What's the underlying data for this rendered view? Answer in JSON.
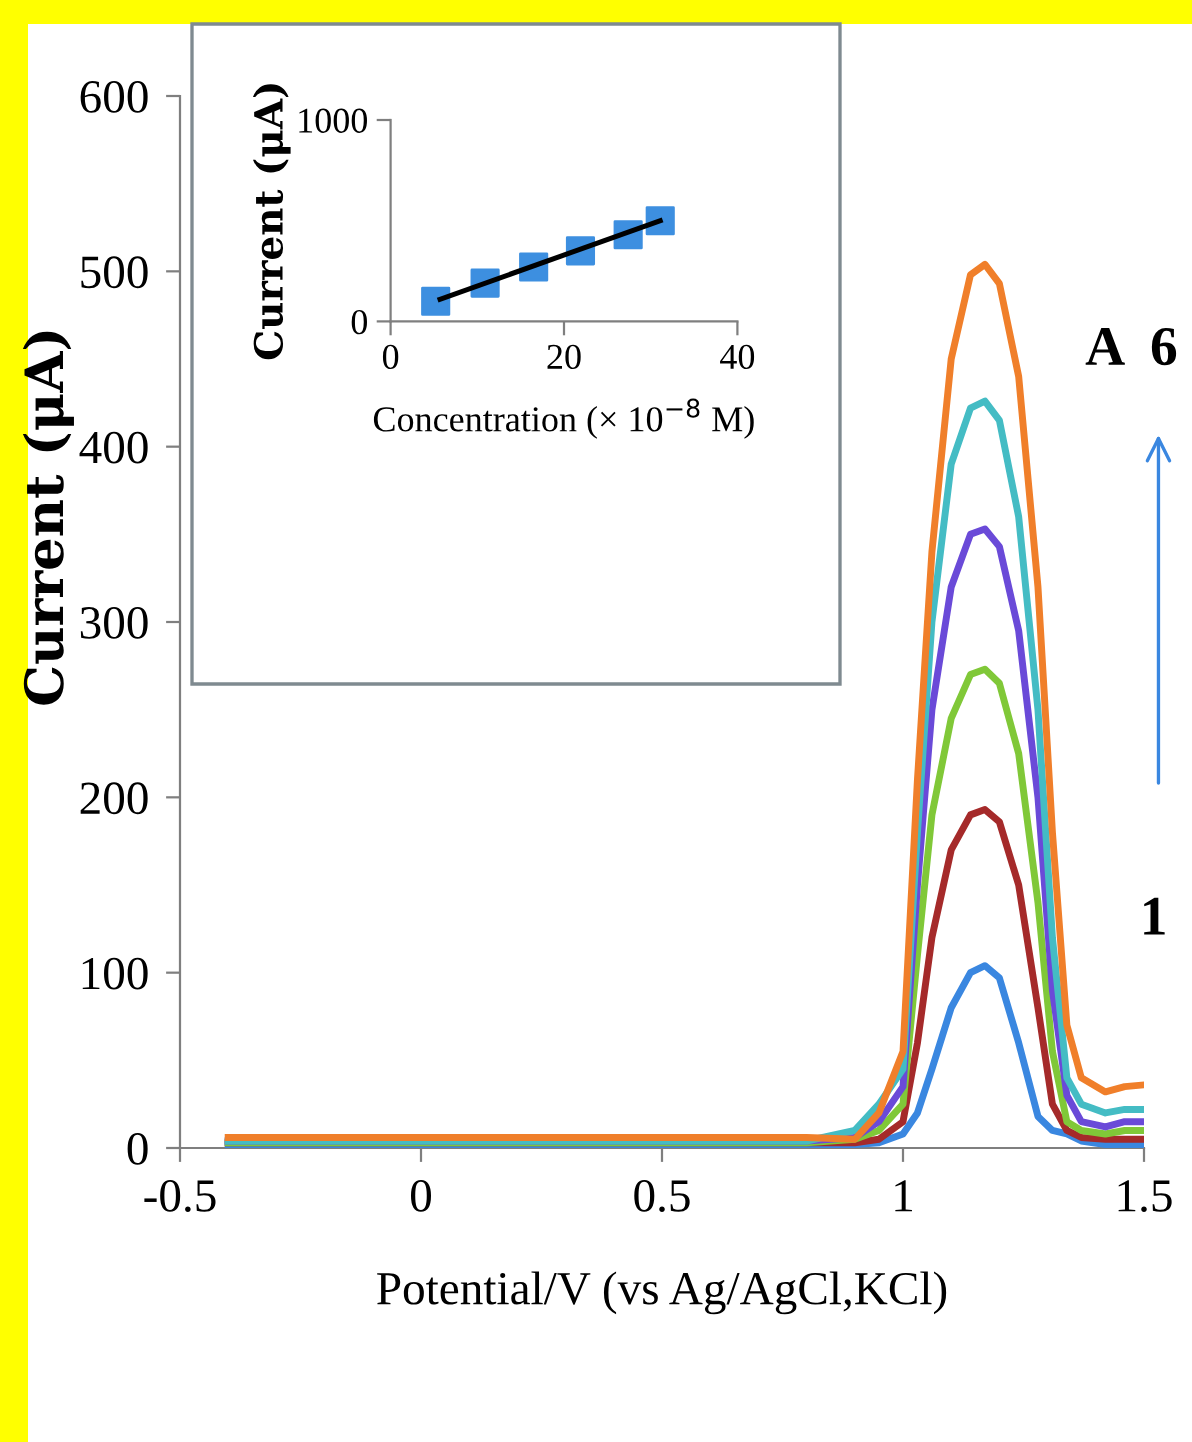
{
  "chart_data": [
    {
      "type": "line",
      "xlabel": "Potential/V (vs Ag/AgCl,KCl)",
      "ylabel": "Current (μA)",
      "xlim": [
        -0.5,
        1.5
      ],
      "ylim": [
        0,
        600
      ],
      "xticks": [
        -0.5,
        0,
        0.5,
        1,
        1.5
      ],
      "yticks": [
        0,
        100,
        200,
        300,
        400,
        500,
        600
      ],
      "annotations": [
        "A  6",
        "1"
      ],
      "x": [
        -0.4,
        0.8,
        0.9,
        0.95,
        1.0,
        1.03,
        1.06,
        1.1,
        1.14,
        1.17,
        1.2,
        1.24,
        1.28,
        1.31,
        1.34,
        1.37,
        1.42,
        1.46,
        1.5
      ],
      "series": [
        {
          "color": "#3a87e0",
          "values": [
            2,
            2,
            2,
            3,
            8,
            20,
            45,
            80,
            100,
            104,
            97,
            60,
            18,
            10,
            8,
            4,
            2,
            2,
            2
          ]
        },
        {
          "color": "#a52a2a",
          "values": [
            3,
            3,
            3,
            5,
            15,
            60,
            120,
            170,
            190,
            193,
            186,
            150,
            80,
            25,
            10,
            6,
            5,
            5,
            5
          ]
        },
        {
          "color": "#80c838",
          "values": [
            3,
            3,
            5,
            10,
            25,
            110,
            190,
            245,
            270,
            273,
            265,
            225,
            140,
            55,
            15,
            10,
            8,
            10,
            10
          ]
        },
        {
          "color": "#6a4ad8",
          "values": [
            4,
            4,
            6,
            15,
            35,
            150,
            250,
            320,
            350,
            353,
            343,
            295,
            200,
            90,
            30,
            15,
            12,
            15,
            15
          ]
        },
        {
          "color": "#44bcc4",
          "values": [
            4,
            4,
            10,
            25,
            45,
            180,
            300,
            390,
            422,
            426,
            415,
            360,
            250,
            120,
            40,
            25,
            20,
            22,
            22
          ]
        },
        {
          "color": "#f07f2a",
          "values": [
            6,
            6,
            5,
            20,
            55,
            210,
            340,
            450,
            498,
            504,
            493,
            440,
            320,
            180,
            70,
            40,
            32,
            35,
            36
          ]
        }
      ]
    },
    {
      "type": "scatter",
      "xlabel": "Concentration (× 10$^{−8}$ M)",
      "ylabel": "Current (μA)",
      "xlim": [
        0,
        40
      ],
      "ylim": [
        0,
        1000
      ],
      "xticks": [
        0,
        20,
        40
      ],
      "yticks": [
        0,
        1000
      ],
      "series": [
        {
          "type": "scatter",
          "marker": "square",
          "color": "#3d8fe0",
          "x": [
            5.2,
            10.9,
            16.5,
            21.9,
            27.4,
            31.1
          ],
          "values": [
            100,
            190,
            270,
            350,
            430,
            500
          ]
        },
        {
          "type": "line",
          "color": "#000000",
          "x": [
            5.7,
            31.1
          ],
          "values": [
            110,
            500
          ]
        }
      ]
    }
  ]
}
